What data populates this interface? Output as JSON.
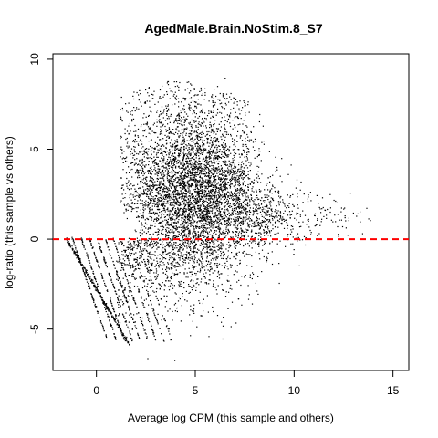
{
  "chart_data": {
    "type": "scatter",
    "title": "AgedMale.Brain.NoStim.8_S7",
    "xlabel": "Average log CPM (this sample and others)",
    "ylabel": "log-ratio (this sample vs others)",
    "xlim": [
      -2.2,
      15.8
    ],
    "ylim": [
      -7.3,
      10.3
    ],
    "xticks": [
      0,
      5,
      10,
      15
    ],
    "yticks": [
      -5,
      0,
      5,
      10
    ],
    "grid": false,
    "point_color": "#000000",
    "reference_line": {
      "y": 0,
      "color": "#ff0000",
      "style": "dashed"
    },
    "point_cloud": {
      "description": "approx. 8000 genes",
      "core_center": [
        5.0,
        2.3
      ],
      "x_range": [
        -1.5,
        14.5
      ],
      "y_range": [
        -6.8,
        9.5
      ]
    }
  }
}
